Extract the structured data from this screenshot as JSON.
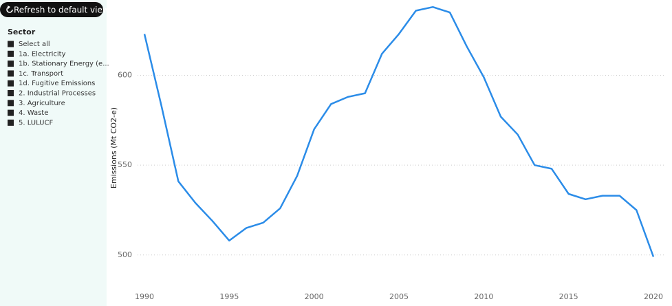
{
  "button": {
    "label": "Refresh to default view"
  },
  "slicer": {
    "title": "Sector",
    "items": [
      "Select all",
      "1a. Electricity",
      "1b. Stationary Energy (e...",
      "1c. Transport",
      "1d. Fugitive Emissions",
      "2. Industrial Processes",
      "3. Agriculture",
      "4. Waste",
      "5. LULUCF"
    ]
  },
  "chart_data": {
    "type": "line",
    "y_label": "Emissions (Mt CO2-e)",
    "color": "#2b8ce8",
    "x": [
      1990,
      1991,
      1992,
      1993,
      1994,
      1995,
      1996,
      1997,
      1998,
      1999,
      2000,
      2001,
      2002,
      2003,
      2004,
      2005,
      2006,
      2007,
      2008,
      2009,
      2010,
      2011,
      2012,
      2013,
      2014,
      2015,
      2016,
      2017,
      2018,
      2019,
      2020
    ],
    "values": [
      623,
      583,
      541,
      529,
      519,
      508,
      515,
      518,
      526,
      544,
      570,
      584,
      588,
      590,
      612,
      623,
      636,
      638,
      635,
      616,
      599,
      577,
      567,
      550,
      548,
      534,
      531,
      533,
      533,
      525,
      499
    ],
    "xlim": [
      1990,
      2020
    ],
    "xticks": [
      1990,
      1995,
      2000,
      2005,
      2010,
      2015,
      2020
    ],
    "ylim": [
      485,
      640
    ],
    "yticks": [
      500,
      550,
      600
    ],
    "grid": true
  }
}
